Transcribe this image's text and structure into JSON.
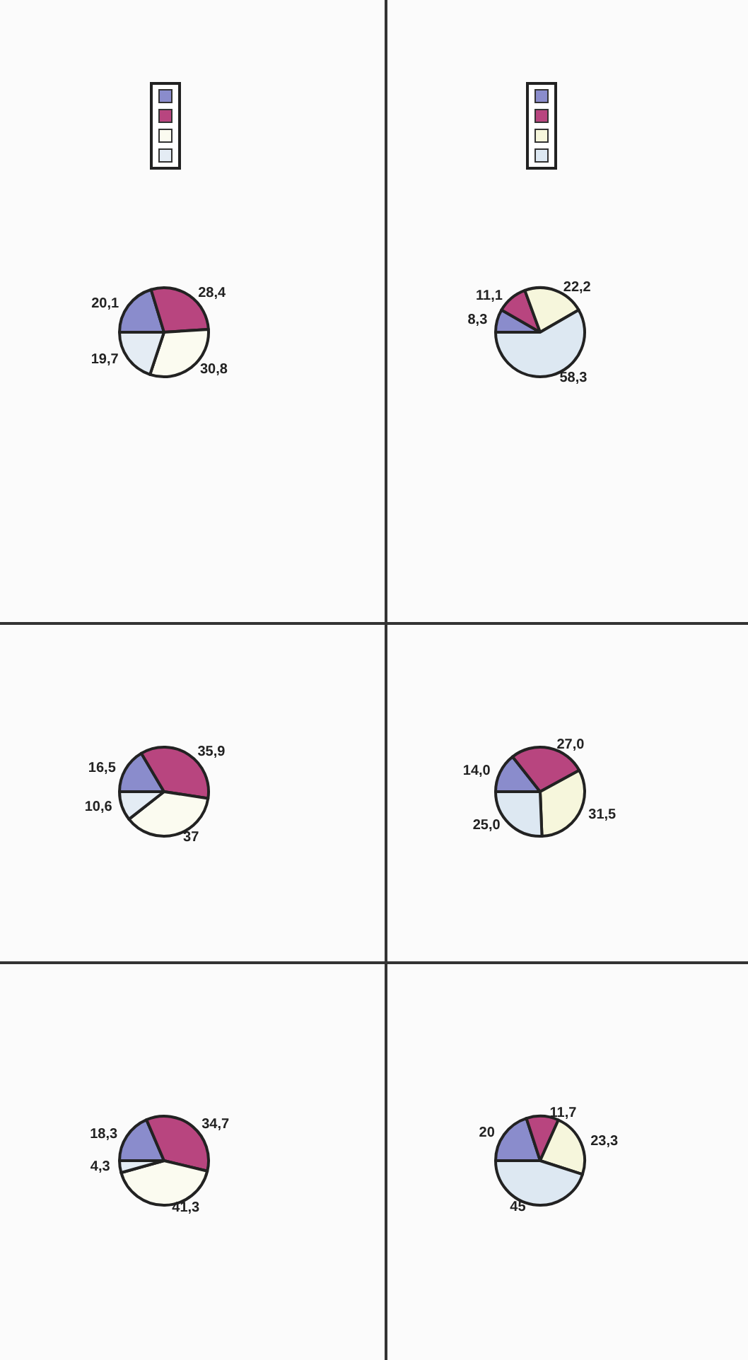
{
  "chart_data": [
    {
      "type": "pie",
      "categories": [
        null,
        null,
        null,
        null
      ],
      "values": [
        20.1,
        28.4,
        30.8,
        19.7
      ],
      "value_labels": [
        "20,1",
        "28,4",
        "30,8",
        "19,7"
      ],
      "colors": [
        "#8a8ccc",
        "#b8457f",
        "#fbfbf0",
        "#e4ecf4"
      ]
    },
    {
      "type": "pie",
      "categories": [
        null,
        null,
        null,
        null
      ],
      "values": [
        8.3,
        11.1,
        22.2,
        58.3
      ],
      "value_labels": [
        "8,3",
        "11,1",
        "22,2",
        "58,3"
      ],
      "colors": [
        "#8a8ccc",
        "#b8457f",
        "#f6f6dc",
        "#dde8f2"
      ]
    },
    {
      "type": "pie",
      "categories": [
        null,
        null,
        null,
        null
      ],
      "values": [
        16.5,
        35.9,
        37,
        10.6
      ],
      "value_labels": [
        "16,5",
        "35,9",
        "37",
        "10,6"
      ],
      "colors": [
        "#8a8ccc",
        "#b8457f",
        "#fbfbf0",
        "#e4ecf4"
      ]
    },
    {
      "type": "pie",
      "categories": [
        null,
        null,
        null,
        null
      ],
      "values": [
        14.0,
        27.0,
        31.5,
        25.0
      ],
      "value_labels": [
        "14,0",
        "27,0",
        "31,5",
        "25,0"
      ],
      "colors": [
        "#8a8ccc",
        "#b8457f",
        "#f6f6dc",
        "#dde8f2"
      ]
    },
    {
      "type": "pie",
      "categories": [
        null,
        null,
        null,
        null
      ],
      "values": [
        18.3,
        34.7,
        41.3,
        4.3
      ],
      "value_labels": [
        "18,3",
        "34,7",
        "41,3",
        "4,3"
      ],
      "colors": [
        "#8a8ccc",
        "#b8457f",
        "#fbfbf0",
        "#e4ecf4"
      ]
    },
    {
      "type": "pie",
      "categories": [
        null,
        null,
        null,
        null
      ],
      "values": [
        20,
        11.7,
        23.3,
        45
      ],
      "value_labels": [
        "20",
        "11,7",
        "23,3",
        "45"
      ],
      "colors": [
        "#8a8ccc",
        "#b8457f",
        "#f6f6dc",
        "#dde8f2"
      ]
    }
  ]
}
